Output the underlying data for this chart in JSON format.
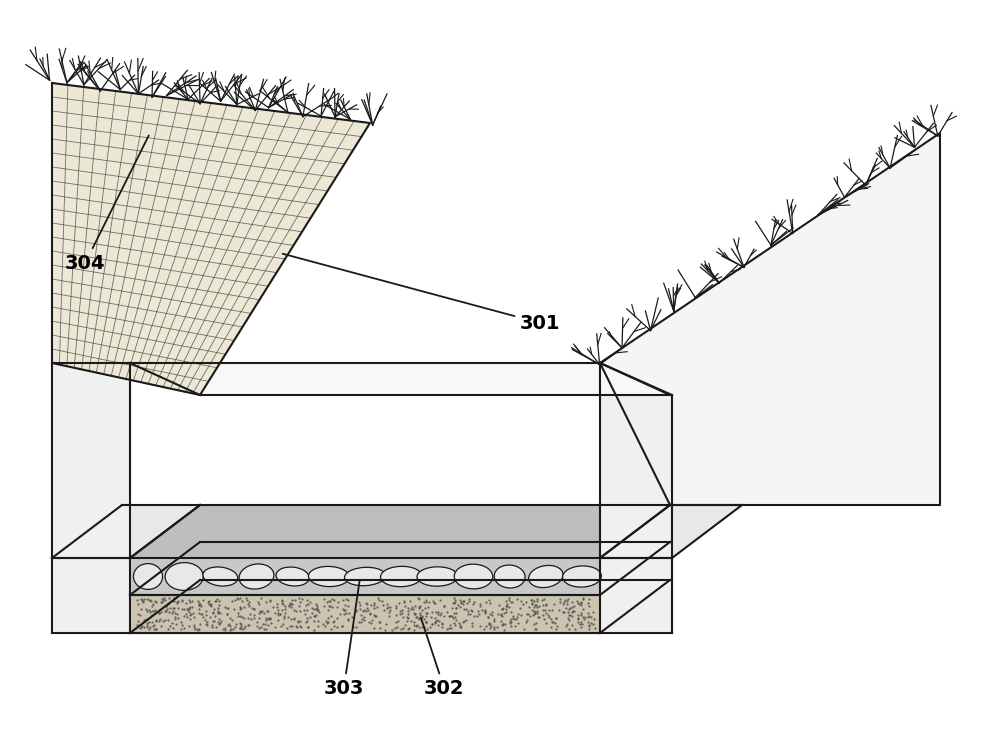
{
  "bg_color": "#ffffff",
  "line_color": "#1a1a1a",
  "line_width": 1.5,
  "label_fontsize": 14,
  "slope_fill": "#ede8d5",
  "gravel_fill": "#c8c8c8",
  "sand_fill": "#ccc4b0",
  "wall_fill": "#f5f5f5",
  "right_slope_fill": "#f5f5f5",
  "grid_color": "#3a3a3a",
  "grid_lw": 0.6
}
